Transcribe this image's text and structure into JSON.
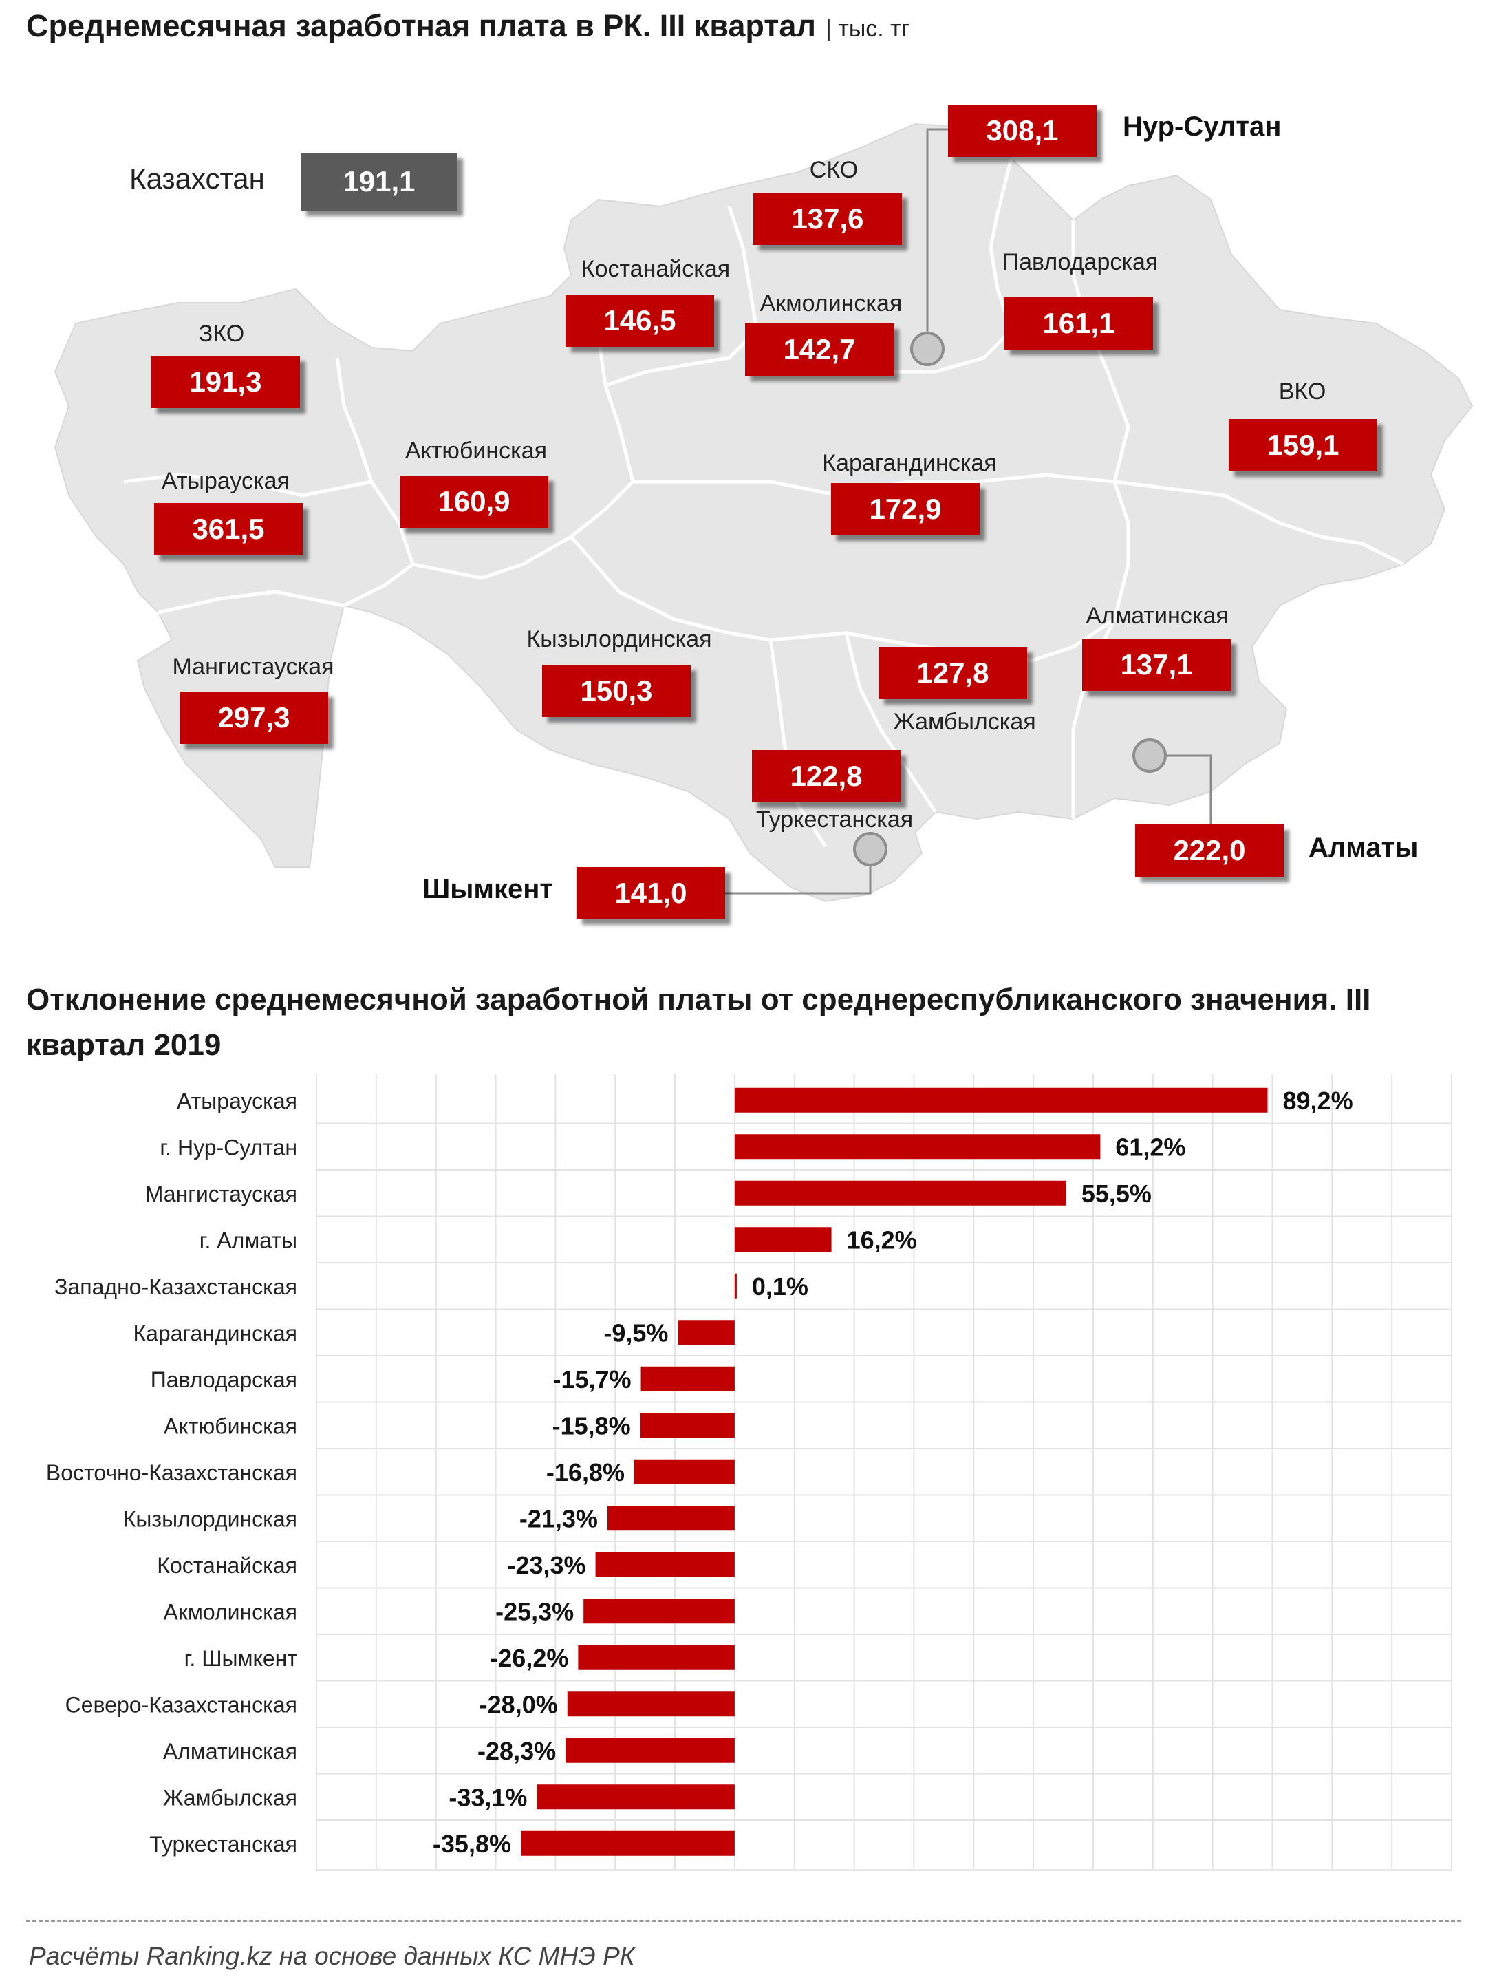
{
  "map": {
    "title": "Среднемесячная заработная плата в РК. III квартал",
    "unit": "| тыс. тг",
    "country": {
      "label": "Казахстан",
      "value": "191,1"
    },
    "regions": [
      {
        "id": "zko",
        "label": "ЗКО",
        "value": "191,3"
      },
      {
        "id": "atyrau",
        "label": "Атырауская",
        "value": "361,5"
      },
      {
        "id": "mangistau",
        "label": "Мангистауская",
        "value": "297,3"
      },
      {
        "id": "aktobe",
        "label": "Актюбинская",
        "value": "160,9"
      },
      {
        "id": "kostanay",
        "label": "Костанайская",
        "value": "146,5"
      },
      {
        "id": "sko",
        "label": "СКО",
        "value": "137,6"
      },
      {
        "id": "akmola",
        "label": "Акмолинская",
        "value": "142,7"
      },
      {
        "id": "pavlodar",
        "label": "Павлодарская",
        "value": "161,1"
      },
      {
        "id": "vko",
        "label": "ВКО",
        "value": "159,1"
      },
      {
        "id": "karaganda",
        "label": "Карагандинская",
        "value": "172,9"
      },
      {
        "id": "kyzylorda",
        "label": "Кызылординская",
        "value": "150,3"
      },
      {
        "id": "zhambyl",
        "label": "Жамбылская",
        "value": "127,8"
      },
      {
        "id": "almaty-reg",
        "label": "Алматинская",
        "value": "137,1"
      },
      {
        "id": "turkestan",
        "label": "Туркестанская",
        "value": "122,8"
      }
    ],
    "cities": [
      {
        "id": "nur-sultan",
        "label": "Нур-Султан",
        "value": "308,1"
      },
      {
        "id": "almaty",
        "label": "Алматы",
        "value": "222,0"
      },
      {
        "id": "shymkent",
        "label": "Шымкент",
        "value": "141,0"
      }
    ],
    "colors": {
      "map_fill": "#e6e6e6",
      "map_border": "#ffffff",
      "value_box": "#c00000",
      "country_box": "#5a5a5a"
    }
  },
  "chart_data": {
    "type": "bar",
    "orientation": "horizontal",
    "title": "Отклонение среднемесячной заработной платы от среднереспубликанского значения. III квартал 2019",
    "categories": [
      "Атырауская",
      "г. Нур-Султан",
      "Мангистауская",
      "г. Алматы",
      "Западно-Казахстанская",
      "Карагандинская",
      "Павлодарская",
      "Актюбинская",
      "Восточно-Казахстанская",
      "Кызылординская",
      "Костанайская",
      "Акмолинская",
      "г. Шымкент",
      "Северо-Казахстанская",
      "Алматинская",
      "Жамбылская",
      "Туркестанская"
    ],
    "values": [
      89.2,
      61.2,
      55.5,
      16.2,
      0.1,
      -9.5,
      -15.7,
      -15.8,
      -16.8,
      -21.3,
      -23.3,
      -25.3,
      -26.2,
      -28.0,
      -28.3,
      -33.1,
      -35.8
    ],
    "labels": [
      "89,2%",
      "61,2%",
      "55,5%",
      "16,2%",
      "0,1%",
      "-9,5%",
      "-15,7%",
      "-15,8%",
      "-16,8%",
      "-21,3%",
      "-23,3%",
      "-25,3%",
      "-26,2%",
      "-28,0%",
      "-28,3%",
      "-33,1%",
      "-35,8%"
    ],
    "xlim": [
      -70,
      120
    ],
    "grid": true,
    "bar_color": "#c00000"
  },
  "footer": {
    "source": "Расчёты Ranking.kz на основе данных КС МНЭ РК"
  }
}
